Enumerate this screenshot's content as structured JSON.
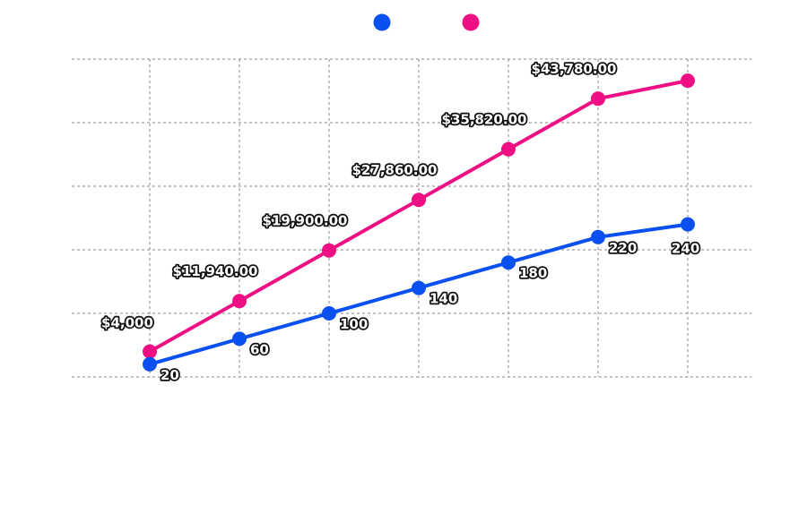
{
  "chart_data": {
    "type": "line",
    "title": "",
    "xlabel": "",
    "ylabel": "",
    "x": [
      0,
      1,
      2,
      3,
      4,
      5,
      6
    ],
    "ylim": [
      0,
      50000
    ],
    "y_scale_note": "both series share the area; series 2 counts are drawn on a secondary axis 0-500",
    "grid": true,
    "legend_position": "top-center",
    "series": [
      {
        "color": "#0a4ff0",
        "axis": "right",
        "ylim": [
          0,
          500
        ],
        "values": [
          20,
          60,
          100,
          140,
          180,
          220,
          240
        ],
        "labels": [
          "20",
          "60",
          "100",
          "140",
          "180",
          "220",
          "240"
        ]
      },
      {
        "color": "#ee0f84",
        "axis": "left",
        "ylim": [
          0,
          50000
        ],
        "values": [
          4000,
          11940,
          19900,
          27860,
          35820,
          43780,
          46600
        ],
        "labels": [
          "$4,000",
          "$11,940.00",
          "$19,900.00",
          "$27,860.00",
          "$35,820.00",
          "$43,780.00",
          ""
        ]
      }
    ]
  }
}
